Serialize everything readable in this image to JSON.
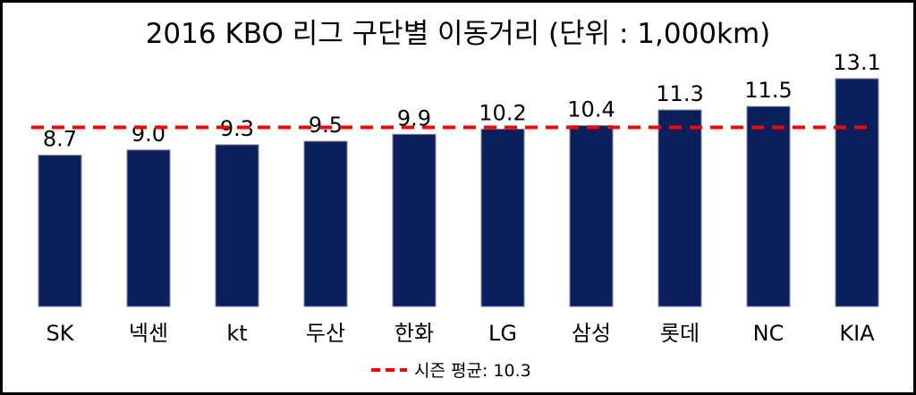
{
  "chart_data": {
    "type": "bar",
    "title": "2016 KBO 리그 구단별 이동거리 (단위 : 1,000km)",
    "categories": [
      "SK",
      "넥센",
      "kt",
      "두산",
      "한화",
      "LG",
      "삼성",
      "롯데",
      "NC",
      "KIA"
    ],
    "values": [
      8.7,
      9.0,
      9.3,
      9.5,
      9.9,
      10.2,
      10.4,
      11.3,
      11.5,
      13.1
    ],
    "value_labels": [
      "8.7",
      "9.0",
      "9.3",
      "9.5",
      "9.9",
      "10.2",
      "10.4",
      "11.3",
      "11.5",
      "13.1"
    ],
    "reference_line": {
      "label": "시즌 평균: 10.3",
      "value": 10.3,
      "style": "dashed",
      "color": "#ff0000"
    },
    "bar_color": "#0b1f5c",
    "xlabel": "",
    "ylabel": "",
    "ylim": [
      0,
      13.1
    ],
    "grid": false,
    "legend_position": "bottom-center"
  }
}
